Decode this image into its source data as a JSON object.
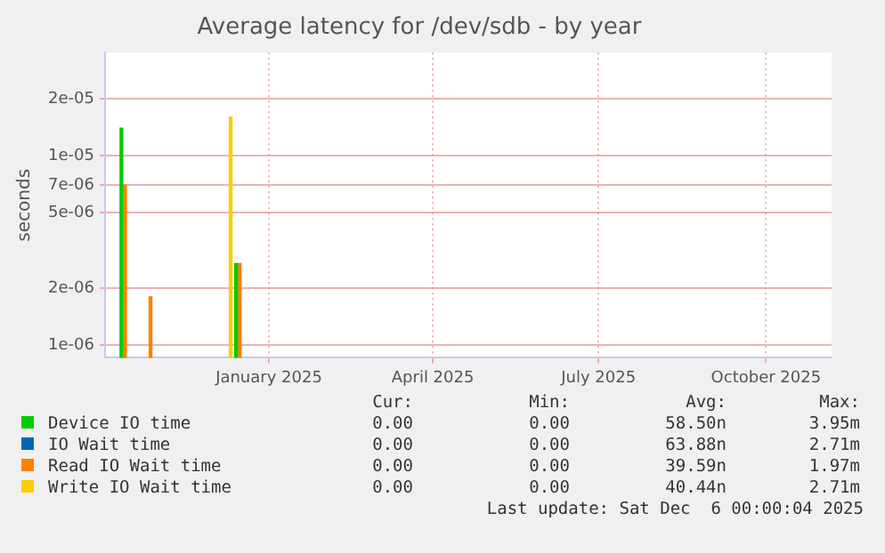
{
  "chart_data": {
    "type": "bar",
    "title": "Average latency for /dev/sdb - by year",
    "ylabel": "seconds",
    "log": "y",
    "grid": true,
    "legend": "bottom",
    "xlim": [
      "2024-10-03",
      "2025-11-06"
    ],
    "xticks": [
      {
        "value": "2025-01-01",
        "label": "January 2025"
      },
      {
        "value": "2025-04-01",
        "label": "April 2025"
      },
      {
        "value": "2025-07-01",
        "label": "July 2025"
      },
      {
        "value": "2025-10-01",
        "label": "October 2025"
      }
    ],
    "ylim": [
      8.6e-07,
      3.5e-05
    ],
    "yticks": [
      {
        "value": 1e-06,
        "label": "1e-06"
      },
      {
        "value": 2e-06,
        "label": "2e-06"
      },
      {
        "value": 5e-06,
        "label": "5e-06"
      },
      {
        "value": 7e-06,
        "label": "7e-06"
      },
      {
        "value": 1e-05,
        "label": "1e-05"
      },
      {
        "value": 2e-05,
        "label": "2e-05"
      }
    ],
    "series": [
      {
        "name": "Device IO time",
        "color": "#00cc00",
        "x": [
          "2024-10-12",
          "2024-12-14"
        ],
        "values": [
          1.4e-05,
          2.7e-06
        ]
      },
      {
        "name": "IO Wait time",
        "color": "#0066b3"
      },
      {
        "name": "Read IO Wait time",
        "color": "#ff8000",
        "x": [
          "2024-10-14",
          "2024-10-28",
          "2024-12-16"
        ],
        "values": [
          7e-06,
          1.8e-06,
          2.7e-06
        ]
      },
      {
        "name": "Write IO Wait time",
        "color": "#ffcc00",
        "x": [
          "2024-12-11"
        ],
        "values": [
          1.6e-05
        ]
      }
    ],
    "annotations": [
      "Cur:",
      "Min:",
      "Avg:",
      "Max:",
      "0.00",
      "0.00",
      "58.50n",
      "3.95m",
      "0.00",
      "0.00",
      "63.88n",
      "2.71m",
      "0.00",
      "0.00",
      "39.59n",
      "1.97m",
      "0.00",
      "0.00",
      "40.44n",
      "2.71m",
      "Last update: Sat Dec  6 00:00:04 2025"
    ]
  }
}
